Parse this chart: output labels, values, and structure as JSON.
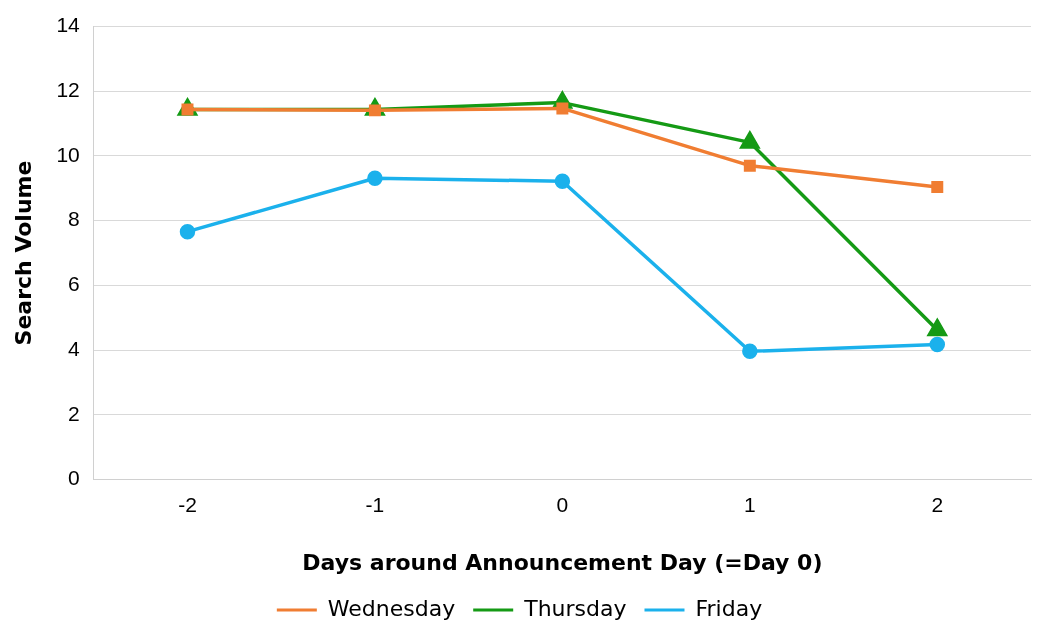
{
  "chart_data": {
    "type": "line",
    "xlabel": "Days around Announcement Day (=Day 0)",
    "ylabel": "Search Volume",
    "categories": [
      "-2",
      "-1",
      "0",
      "1",
      "2"
    ],
    "series": [
      {
        "name": "Wednesday",
        "color": "#f07d32",
        "marker": "square",
        "values": [
          11.44,
          11.41,
          11.47,
          9.7,
          9.04
        ]
      },
      {
        "name": "Thursday",
        "color": "#159a15",
        "marker": "triangle",
        "values": [
          11.44,
          11.44,
          11.65,
          10.42,
          4.62
        ]
      },
      {
        "name": "Friday",
        "color": "#1bb1ec",
        "marker": "circle",
        "values": [
          7.66,
          9.31,
          9.22,
          3.96,
          4.17
        ]
      }
    ],
    "ylim": [
      0,
      14
    ],
    "yticks": [
      0,
      2,
      4,
      6,
      8,
      10,
      12,
      14
    ],
    "grid": "y",
    "legend": "bottom",
    "line_style": "solid"
  }
}
